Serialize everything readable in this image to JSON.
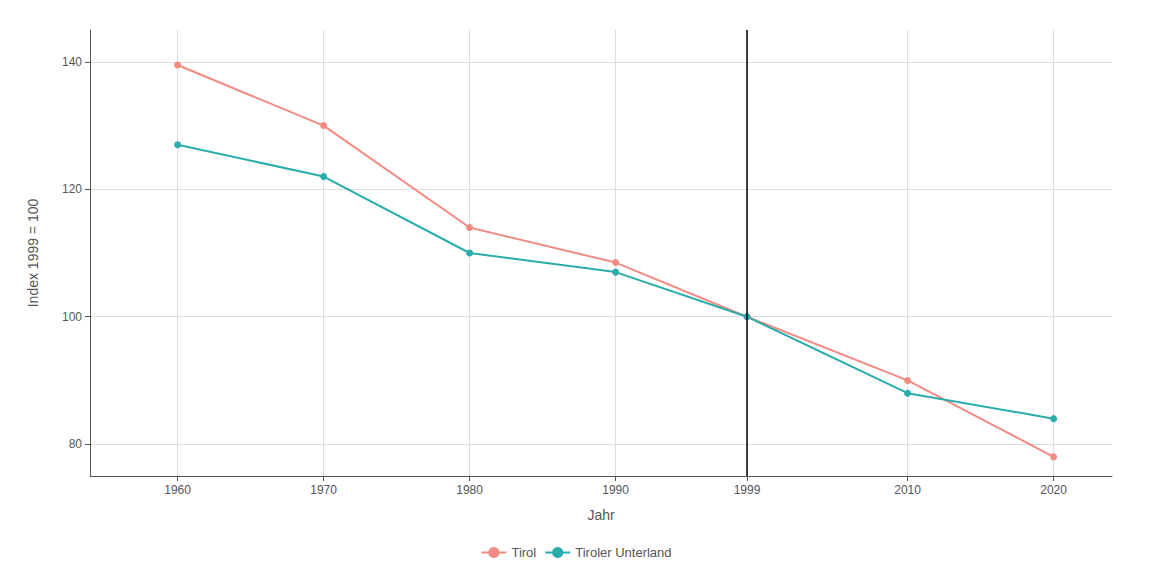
{
  "chart_data": {
    "type": "line",
    "x_label": "Jahr",
    "y_label": "Index 1999 = 100",
    "x": [
      1960,
      1970,
      1980,
      1990,
      1999,
      2010,
      2020
    ],
    "series": [
      {
        "name": "Tirol",
        "color": "#F28B82",
        "values": [
          139.5,
          130.0,
          114.0,
          108.5,
          100.0,
          90.0,
          78.0
        ]
      },
      {
        "name": "Tiroler Unterland",
        "color": "#2AACAC",
        "values": [
          127.0,
          122.0,
          110.0,
          107.0,
          100.0,
          88.0,
          84.0
        ]
      }
    ],
    "marker": "circle",
    "line_style": "solid",
    "xlim": [
      1954,
      2024
    ],
    "xticks": [
      1960,
      1970,
      1980,
      1990,
      1999,
      2010,
      2020
    ],
    "ylim": [
      75,
      145
    ],
    "yticks": [
      80,
      100,
      120,
      140
    ],
    "vlines": [
      {
        "x": 1999,
        "color": "#000000"
      }
    ],
    "grid": true,
    "legend": "bottom"
  }
}
